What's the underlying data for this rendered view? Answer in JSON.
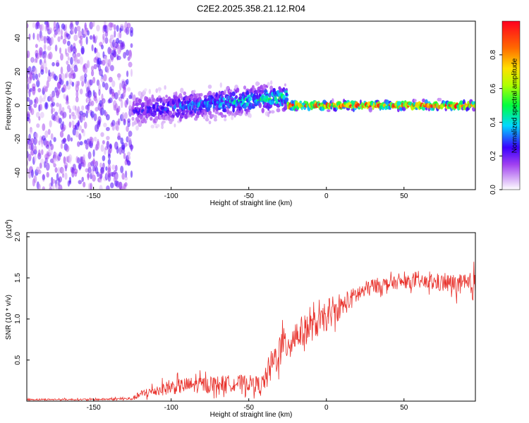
{
  "chart_data": [
    {
      "type": "heatmap",
      "title": "C2E2.2025.358.21.12.R04",
      "xlabel": "Height of straight line (km)",
      "ylabel": "Frequency (Hz)",
      "xlim": [
        -193,
        96
      ],
      "ylim": [
        -50,
        50
      ],
      "xticks": [
        -150,
        -100,
        -50,
        0,
        50
      ],
      "yticks": [
        -40,
        -20,
        0,
        20,
        40
      ],
      "colorbar": {
        "label": "Normalized spectral amplitude",
        "range": [
          0,
          1
        ],
        "ticks": [
          0.0,
          0.2,
          0.4,
          0.6,
          0.8
        ],
        "tick_labels": [
          "0.0",
          "0.2",
          "0.4",
          "0.6",
          "0.8"
        ],
        "colors": [
          "#ffffff",
          "#b04cf0",
          "#3a00ff",
          "#00d8ff",
          "#00ff40",
          "#c8ff00",
          "#ffe000",
          "#ff6a00",
          "#ff0020"
        ]
      },
      "regions": [
        {
          "x_range": [
            -193,
            -125
          ],
          "freq_spread": 50,
          "amplitude": 0.15,
          "description_level": "noise"
        },
        {
          "x_range": [
            -125,
            -25
          ],
          "freq_center_start": -3,
          "freq_center_end": 5,
          "freq_spread_start": 8,
          "freq_spread_end": 6,
          "amplitude_start": 0.2,
          "amplitude_end": 0.45
        },
        {
          "x_range": [
            -25,
            96
          ],
          "freq_center": 0,
          "freq_spread": 2,
          "amplitude": 0.85
        }
      ]
    },
    {
      "type": "line",
      "title": "",
      "xlabel": "Height of straight line (km)",
      "ylabel": "SNR (10 * v/v)",
      "yscale_label": "(x10⁴)",
      "yscale_base": "x10",
      "yscale_exp": "4",
      "xlim": [
        -193,
        96
      ],
      "ylim": [
        0,
        2.05
      ],
      "xticks": [
        -150,
        -100,
        -50,
        0,
        50
      ],
      "yticks": [
        0.5,
        1.0,
        1.5,
        2.0
      ],
      "ytick_labels": [
        "0.5",
        "1.0",
        "1.5",
        "2.0"
      ],
      "series": [
        {
          "name": "SNR",
          "color": "#e8302a",
          "envelope_x": [
            -193,
            -150,
            -125,
            -120,
            -110,
            -100,
            -90,
            -80,
            -70,
            -60,
            -50,
            -42,
            -38,
            -35,
            -30,
            -25,
            -20,
            -10,
            0,
            10,
            20,
            30,
            40,
            50,
            60,
            70,
            80,
            90,
            96
          ],
          "envelope_mean": [
            0.02,
            0.02,
            0.03,
            0.08,
            0.13,
            0.17,
            0.19,
            0.2,
            0.21,
            0.22,
            0.22,
            0.2,
            0.3,
            0.45,
            0.62,
            0.72,
            0.8,
            0.9,
            1.0,
            1.15,
            1.3,
            1.4,
            1.43,
            1.45,
            1.45,
            1.44,
            1.43,
            1.4,
            1.4
          ],
          "envelope_noise": [
            0.01,
            0.01,
            0.02,
            0.05,
            0.07,
            0.09,
            0.1,
            0.1,
            0.1,
            0.1,
            0.1,
            0.1,
            0.15,
            0.2,
            0.22,
            0.22,
            0.2,
            0.18,
            0.15,
            0.13,
            0.12,
            0.1,
            0.08,
            0.08,
            0.08,
            0.1,
            0.12,
            0.14,
            0.2
          ]
        }
      ]
    }
  ]
}
